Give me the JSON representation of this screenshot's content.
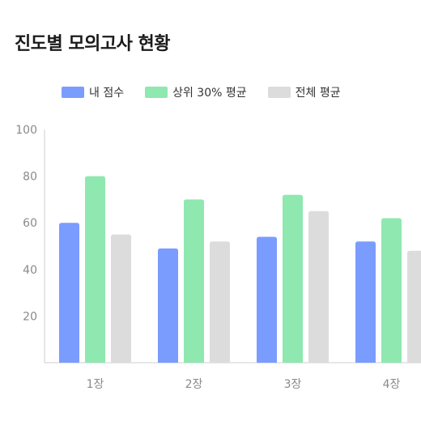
{
  "page": {
    "title": "진도별 모의고사 현황"
  },
  "chart_data": {
    "type": "bar",
    "title": "진도별 모의고사 현황",
    "categories": [
      "1장",
      "2장",
      "3장",
      "4장"
    ],
    "series": [
      {
        "name": "내 점수",
        "values": [
          60,
          49,
          54,
          52
        ],
        "color": "#7b9cff"
      },
      {
        "name": "상위 30% 평균",
        "values": [
          80,
          70,
          72,
          62
        ],
        "color": "#8ee8b0"
      },
      {
        "name": "전체 평균",
        "values": [
          55,
          52,
          65,
          48
        ],
        "color": "#dcdcdc"
      }
    ],
    "ylim": [
      0,
      100
    ],
    "yticks": [
      20,
      40,
      60,
      80,
      100
    ],
    "xlabel": "",
    "ylabel": "",
    "grid": false,
    "legend": "top"
  }
}
